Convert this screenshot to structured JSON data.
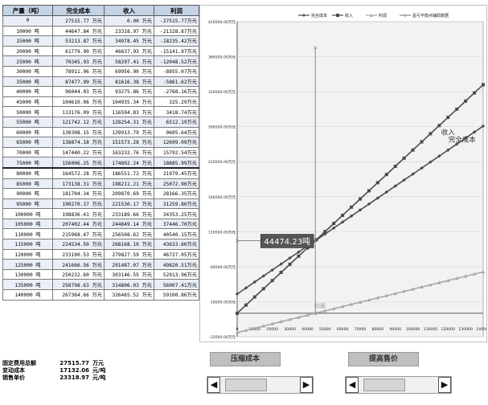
{
  "table": {
    "headers": [
      "产量（吨）",
      "完全成本",
      "收入",
      "利润"
    ],
    "rows": [
      [
        "0",
        "27515.77 万元",
        "0.00 万元",
        "-27515.77万元"
      ],
      [
        "10000 吨",
        "44647.84 万元",
        "23318.97 万元",
        "-21328.87万元"
      ],
      [
        "15000 吨",
        "53213.87 万元",
        "34978.45 万元",
        "-18235.42万元"
      ],
      [
        "20000 吨",
        "61779.90 万元",
        "46637.93 万元",
        "-15141.97万元"
      ],
      [
        "25000 吨",
        "70345.93 万元",
        "58297.41 万元",
        "-12048.52万元"
      ],
      [
        "30000 吨",
        "78911.96 万元",
        "69956.90 万元",
        "-8955.07万元"
      ],
      [
        "35000 吨",
        "87477.99 万元",
        "81616.38 万元",
        "-5861.62万元"
      ],
      [
        "40000 吨",
        "96044.03 万元",
        "93275.86 万元",
        "-2768.16万元"
      ],
      [
        "45000 吨",
        "104610.06 万元",
        "104935.34 万元",
        "325.29万元"
      ],
      [
        "50000 吨",
        "113176.09 万元",
        "116594.83 万元",
        "3418.74万元"
      ],
      [
        "55000 吨",
        "121742.12 万元",
        "128254.31 万元",
        "6512.19万元"
      ],
      [
        "60000 吨",
        "130308.15 万元",
        "139913.79 万元",
        "9605.64万元"
      ],
      [
        "65000 吨",
        "138874.18 万元",
        "151573.28 万元",
        "12699.09万元"
      ],
      [
        "70000 吨",
        "147440.22 万元",
        "163232.76 万元",
        "15792.54万元"
      ],
      [
        "75000 吨",
        "156006.25 万元",
        "174892.24 万元",
        "18885.99万元"
      ],
      [
        "80000 吨",
        "164572.28 万元",
        "186551.72 万元",
        "21979.45万元"
      ],
      [
        "85000 吨",
        "173138.31 万元",
        "198211.21 万元",
        "25072.90万元"
      ],
      [
        "90000 吨",
        "181704.34 万元",
        "209870.69 万元",
        "28166.35万元"
      ],
      [
        "95000 吨",
        "190270.37 万元",
        "221530.17 万元",
        "31259.80万元"
      ],
      [
        "100000 吨",
        "198836.41 万元",
        "233189.66 万元",
        "34353.25万元"
      ],
      [
        "105000 吨",
        "207402.44 万元",
        "244849.14 万元",
        "37446.70万元"
      ],
      [
        "110000 吨",
        "215968.47 万元",
        "256508.62 万元",
        "40540.15万元"
      ],
      [
        "115000 吨",
        "224534.50 万元",
        "268168.10 万元",
        "43633.60万元"
      ],
      [
        "120000 吨",
        "233100.53 万元",
        "279827.59 万元",
        "46727.05万元"
      ],
      [
        "125000 吨",
        "241666.56 万元",
        "291487.07 万元",
        "49820.51万元"
      ],
      [
        "130000 吨",
        "250232.60 万元",
        "303146.55 万元",
        "52913.96万元"
      ],
      [
        "135000 吨",
        "258798.63 万元",
        "314806.03 万元",
        "56007.41万元"
      ],
      [
        "140000 吨",
        "267364.66 万元",
        "326465.52 万元",
        "59100.86万元"
      ]
    ]
  },
  "summary": {
    "fixed_cost": {
      "label": "固定费用总额",
      "value": "27515.77",
      "unit": "万元"
    },
    "variable_cost": {
      "label": "变动成本",
      "value": "17132.06",
      "unit": "元/吨"
    },
    "unit_price": {
      "label": "销售单价",
      "value": "23318.97",
      "unit": "元/吨"
    }
  },
  "controls": {
    "compress_cost": {
      "label": "压缩成本",
      "value_fraction": 0.1
    },
    "raise_price": {
      "label": "提高售价",
      "value_fraction": 0.1
    }
  },
  "colors": {
    "cost": "#4d4d4d",
    "revenue": "#4a4a4a",
    "profit": "#a8a8a8",
    "breakeven": "#8a8a8a",
    "annotation_box": "#555555",
    "plot_bg": "#f2f2f2",
    "header_bg": "#c4d3e6"
  },
  "chart_data": {
    "type": "line",
    "legend": [
      "完全成本",
      "收入",
      "利润",
      "盈亏平衡点辅助数据"
    ],
    "legend_position": "top",
    "x": [
      0,
      5000,
      10000,
      15000,
      20000,
      25000,
      30000,
      35000,
      40000,
      45000,
      50000,
      55000,
      60000,
      65000,
      70000,
      75000,
      80000,
      85000,
      90000,
      95000,
      100000,
      105000,
      110000,
      115000,
      120000,
      125000,
      130000,
      135000,
      140000
    ],
    "x_ticks": [
      0,
      10000,
      20000,
      30000,
      40000,
      50000,
      60000,
      70000,
      80000,
      90000,
      100000,
      110000,
      120000,
      130000,
      140000
    ],
    "y_ticks": [
      "-33500.00万元",
      "16500.00万元",
      "66500.00万元",
      "116500.00万元",
      "166500.00万元",
      "216500.00万元",
      "266500.00万元",
      "316500.00万元",
      "366500.00万元",
      "416500.00万元"
    ],
    "y_tick_values": [
      -33500,
      16500,
      66500,
      116500,
      166500,
      216500,
      266500,
      316500,
      366500,
      416500
    ],
    "ylim": [
      -33500,
      416500
    ],
    "xlim": [
      0,
      140000
    ],
    "series": [
      {
        "name": "完全成本",
        "intercept": 27515.77,
        "slope": 1.713206
      },
      {
        "name": "收入",
        "intercept": 0,
        "slope": 2.331897
      },
      {
        "name": "利润",
        "intercept": -27515.77,
        "slope": 0.618691
      }
    ],
    "breakeven": {
      "x": 44474.23,
      "y": 103708.66,
      "label": "44474.23吨",
      "vline_top": 380000,
      "vline_bottom": 0,
      "hline_left": 0
    },
    "line_labels": [
      {
        "text": "收入",
        "x": 120000,
        "y": 255000
      },
      {
        "text": "完全成本",
        "x": 128000,
        "y": 245000
      },
      {
        "text": "利润",
        "x": 47000,
        "y": 8000
      }
    ],
    "grid": true,
    "x_tick_font_note": "x axis numeric labels"
  }
}
